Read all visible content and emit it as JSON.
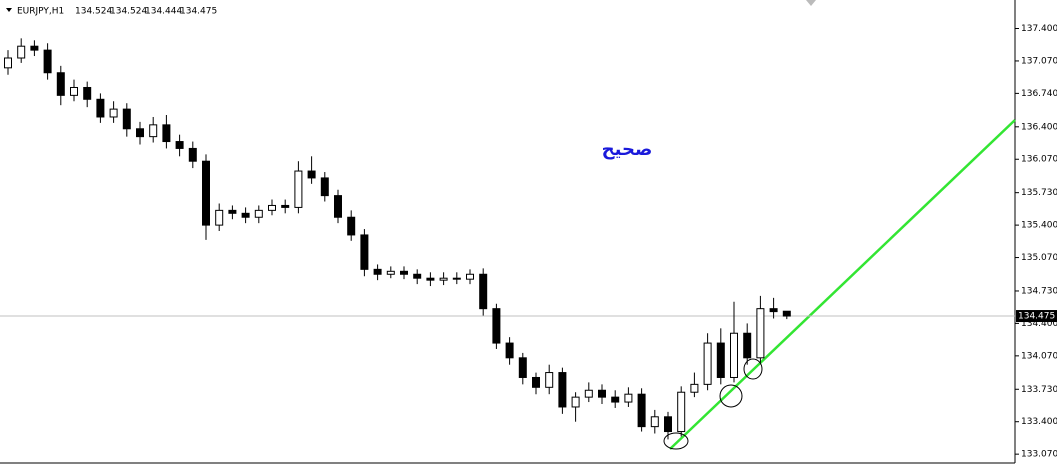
{
  "chart_data": {
    "type": "candlestick",
    "title": "EURJPY,H1",
    "annotation": "صحيح",
    "up_color": "#ffffff",
    "down_color": "#000000",
    "annotation_color": "#1a1adb",
    "open": [
      137.0,
      137.1,
      137.22,
      137.18,
      136.95,
      136.72,
      136.8,
      136.68,
      136.5,
      136.58,
      136.38,
      136.3,
      136.42,
      136.25,
      136.18,
      136.05,
      135.4,
      135.55,
      135.52,
      135.48,
      135.55,
      135.6,
      135.58,
      135.95,
      135.88,
      135.7,
      135.48,
      135.3,
      134.95,
      134.9,
      134.93,
      134.9,
      134.86,
      134.84,
      134.86,
      134.85,
      134.9,
      134.55,
      134.2,
      134.05,
      133.85,
      133.75,
      133.9,
      133.55,
      133.65,
      133.72,
      133.65,
      133.6,
      133.68,
      133.35,
      133.45,
      133.3,
      133.7,
      133.78,
      134.2,
      133.85,
      134.3,
      134.05,
      134.55,
      134.524
    ],
    "high": [
      137.18,
      137.3,
      137.28,
      137.25,
      137.02,
      136.88,
      136.86,
      136.74,
      136.66,
      136.64,
      136.45,
      136.5,
      136.52,
      136.32,
      136.25,
      136.12,
      135.62,
      135.6,
      135.58,
      135.6,
      135.66,
      135.66,
      136.05,
      136.1,
      135.94,
      135.76,
      135.55,
      135.36,
      135.0,
      134.98,
      134.98,
      134.95,
      134.92,
      134.92,
      134.92,
      134.95,
      134.96,
      134.6,
      134.26,
      134.1,
      133.9,
      133.98,
      133.95,
      133.7,
      133.8,
      133.78,
      133.72,
      133.75,
      133.74,
      133.52,
      133.5,
      133.76,
      133.9,
      134.3,
      134.35,
      134.62,
      134.4,
      134.68,
      134.66,
      134.524
    ],
    "low": [
      136.93,
      137.05,
      137.12,
      136.88,
      136.62,
      136.66,
      136.6,
      136.44,
      136.44,
      136.3,
      136.22,
      136.24,
      136.18,
      136.1,
      135.98,
      135.25,
      135.34,
      135.46,
      135.42,
      135.42,
      135.5,
      135.52,
      135.52,
      135.82,
      135.64,
      135.42,
      135.24,
      134.88,
      134.84,
      134.86,
      134.85,
      134.8,
      134.78,
      134.79,
      134.8,
      134.8,
      134.48,
      134.14,
      133.98,
      133.78,
      133.68,
      133.68,
      133.48,
      133.4,
      133.6,
      133.58,
      133.54,
      133.55,
      133.3,
      133.28,
      133.22,
      133.25,
      133.65,
      133.72,
      133.78,
      133.8,
      133.98,
      134.0,
      134.45,
      134.444
    ],
    "close": [
      137.1,
      137.22,
      137.18,
      136.95,
      136.72,
      136.8,
      136.68,
      136.5,
      136.58,
      136.38,
      136.3,
      136.42,
      136.25,
      136.18,
      136.05,
      135.4,
      135.55,
      135.52,
      135.48,
      135.55,
      135.6,
      135.58,
      135.95,
      135.88,
      135.7,
      135.48,
      135.3,
      134.95,
      134.9,
      134.93,
      134.9,
      134.86,
      134.84,
      134.86,
      134.85,
      134.9,
      134.55,
      134.2,
      134.05,
      133.85,
      133.75,
      133.9,
      133.55,
      133.65,
      133.72,
      133.65,
      133.6,
      133.68,
      133.35,
      133.45,
      133.3,
      133.7,
      133.78,
      134.2,
      133.85,
      134.3,
      134.05,
      134.55,
      134.52,
      134.475
    ],
    "ylim": [
      132.98,
      137.69
    ],
    "yticks": [
      {
        "value": 137.4,
        "label": "137.400"
      },
      {
        "value": 137.07,
        "label": "137.070"
      },
      {
        "value": 136.74,
        "label": "136.740"
      },
      {
        "value": 136.4,
        "label": "136.400"
      },
      {
        "value": 136.07,
        "label": "136.070"
      },
      {
        "value": 135.73,
        "label": "135.730"
      },
      {
        "value": 135.4,
        "label": "135.400"
      },
      {
        "value": 135.07,
        "label": "135.070"
      },
      {
        "value": 134.73,
        "label": "134.730"
      },
      {
        "value": 134.4,
        "label": "134.400"
      },
      {
        "value": 134.07,
        "label": "134.070"
      },
      {
        "value": 133.73,
        "label": "133.730"
      },
      {
        "value": 133.4,
        "label": "133.400"
      },
      {
        "value": 133.07,
        "label": "133.070"
      }
    ]
  }
}
